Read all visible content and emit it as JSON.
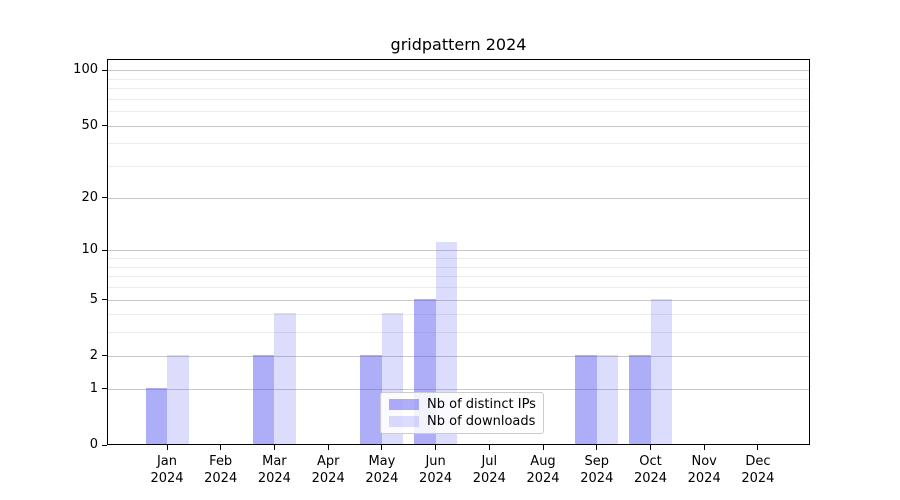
{
  "title": "gridpattern 2024",
  "colors": {
    "distinct_ips": "rgba(80,80,240,0.47)",
    "downloads": "rgba(80,80,240,0.20)",
    "grid_major": "#c9c9c9",
    "grid_minor": "#ececec",
    "spine": "#000000"
  },
  "legend": {
    "items": [
      {
        "label": "Nb of distinct IPs",
        "color": "rgba(80,80,240,0.47)"
      },
      {
        "label": "Nb of downloads",
        "color": "rgba(80,80,240,0.20)"
      }
    ]
  },
  "chart_data": {
    "type": "bar",
    "title": "gridpattern 2024",
    "categories": [
      "Jan",
      "Feb",
      "Mar",
      "Apr",
      "May",
      "Jun",
      "Jul",
      "Aug",
      "Sep",
      "Oct",
      "Nov",
      "Dec"
    ],
    "year_label": "2024",
    "series": [
      {
        "name": "Nb of distinct IPs",
        "values": [
          1,
          0,
          2,
          0,
          2,
          5,
          0,
          0,
          2,
          2,
          0,
          0
        ],
        "color": "rgba(80,80,240,0.47)"
      },
      {
        "name": "Nb of downloads",
        "values": [
          2,
          0,
          4,
          0,
          4,
          11,
          0,
          0,
          2,
          5,
          0,
          0
        ],
        "color": "rgba(80,80,240,0.20)"
      }
    ],
    "yscale": "log10(1+x)",
    "y_major_ticks": [
      0,
      1,
      2,
      5,
      10,
      20,
      50,
      100
    ],
    "y_minor_gridlines": [
      3,
      4,
      6,
      7,
      8,
      9,
      30,
      40,
      60,
      70,
      80,
      90
    ],
    "ylim": [
      0,
      115
    ],
    "xlabel": "",
    "ylabel": "",
    "grid": true,
    "legend_position": "lower center"
  }
}
